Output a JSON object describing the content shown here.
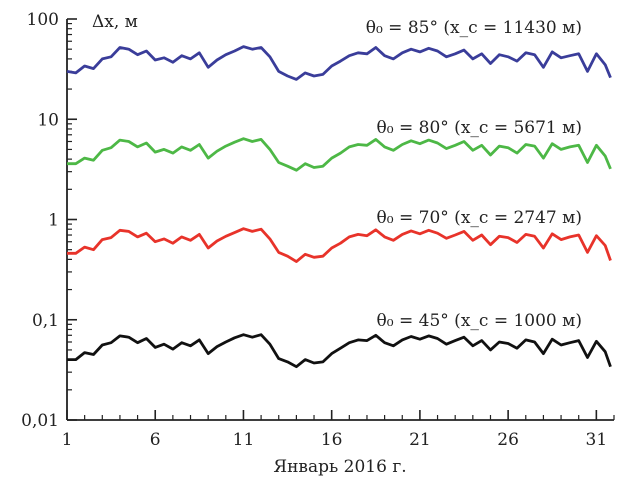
{
  "chart_data": {
    "type": "line",
    "ylabel": "Δx, м",
    "xlabel": "Январь 2016 г.",
    "yscale": "log",
    "ylim": [
      0.01,
      100
    ],
    "xlim": [
      1,
      32
    ],
    "grid": false,
    "x_ticks": [
      1,
      6,
      11,
      16,
      21,
      26,
      31
    ],
    "y_ticks": [
      {
        "value": 100,
        "label": "100"
      },
      {
        "value": 10,
        "label": "10"
      },
      {
        "value": 1,
        "label": "1"
      },
      {
        "value": 0.1,
        "label": "0,1"
      },
      {
        "value": 0.01,
        "label": "0,01"
      }
    ],
    "x": [
      1.0,
      1.5,
      2.0,
      2.5,
      3.0,
      3.5,
      4.0,
      4.5,
      5.0,
      5.5,
      6.0,
      6.5,
      7.0,
      7.5,
      8.0,
      8.5,
      9.0,
      9.5,
      10.0,
      10.5,
      11.0,
      11.5,
      12.0,
      12.5,
      13.0,
      13.5,
      14.0,
      14.5,
      15.0,
      15.5,
      16.0,
      16.5,
      17.0,
      17.5,
      18.0,
      18.5,
      19.0,
      19.5,
      20.0,
      20.5,
      21.0,
      21.5,
      22.0,
      22.5,
      23.0,
      23.5,
      24.0,
      24.5,
      25.0,
      25.5,
      26.0,
      26.5,
      27.0,
      27.5,
      28.0,
      28.5,
      29.0,
      29.5,
      30.0,
      30.5,
      31.0,
      31.5,
      31.8
    ],
    "series": [
      {
        "label": "θ₀ = 85° (x_c = 11430 м)",
        "color": "#3a3d9a",
        "values": [
          30,
          29,
          34,
          32,
          40,
          42,
          52,
          50,
          44,
          48,
          39,
          41,
          37,
          43,
          40,
          46,
          33,
          39,
          44,
          48,
          53,
          50,
          52,
          42,
          30,
          27,
          25,
          29,
          27,
          28,
          34,
          38,
          43,
          46,
          45,
          52,
          43,
          40,
          46,
          50,
          47,
          51,
          48,
          42,
          45,
          49,
          40,
          45,
          36,
          44,
          42,
          38,
          46,
          44,
          33,
          47,
          41,
          43,
          45,
          30,
          45,
          35,
          26
        ]
      },
      {
        "label": "θ₀ = 80° (x_c = 5671 м)",
        "color": "#4db846",
        "values": [
          3.6,
          3.6,
          4.1,
          3.9,
          4.9,
          5.2,
          6.2,
          6.0,
          5.3,
          5.8,
          4.7,
          5.0,
          4.6,
          5.3,
          4.9,
          5.6,
          4.1,
          4.8,
          5.4,
          5.9,
          6.4,
          6.0,
          6.3,
          5.0,
          3.7,
          3.4,
          3.1,
          3.6,
          3.3,
          3.4,
          4.1,
          4.6,
          5.3,
          5.6,
          5.5,
          6.3,
          5.3,
          4.9,
          5.6,
          6.1,
          5.7,
          6.2,
          5.8,
          5.1,
          5.5,
          6.0,
          4.9,
          5.5,
          4.4,
          5.4,
          5.2,
          4.6,
          5.6,
          5.4,
          4.1,
          5.7,
          5.0,
          5.3,
          5.5,
          3.7,
          5.5,
          4.3,
          3.2
        ]
      },
      {
        "label": "θ₀ = 70° (x_c = 2747 м)",
        "color": "#e8332a",
        "values": [
          0.46,
          0.46,
          0.53,
          0.5,
          0.63,
          0.66,
          0.78,
          0.76,
          0.67,
          0.73,
          0.6,
          0.64,
          0.58,
          0.67,
          0.62,
          0.71,
          0.52,
          0.61,
          0.68,
          0.74,
          0.81,
          0.76,
          0.8,
          0.64,
          0.47,
          0.43,
          0.38,
          0.45,
          0.42,
          0.43,
          0.52,
          0.58,
          0.67,
          0.71,
          0.69,
          0.79,
          0.67,
          0.62,
          0.71,
          0.77,
          0.72,
          0.78,
          0.73,
          0.65,
          0.7,
          0.76,
          0.62,
          0.7,
          0.56,
          0.68,
          0.66,
          0.59,
          0.71,
          0.68,
          0.52,
          0.72,
          0.63,
          0.67,
          0.7,
          0.47,
          0.69,
          0.55,
          0.39
        ]
      },
      {
        "label": "θ₀ = 45° (x_c = 1000 м)",
        "color": "#111111",
        "values": [
          0.04,
          0.04,
          0.047,
          0.045,
          0.056,
          0.059,
          0.069,
          0.067,
          0.059,
          0.065,
          0.053,
          0.057,
          0.051,
          0.059,
          0.055,
          0.063,
          0.046,
          0.054,
          0.06,
          0.066,
          0.071,
          0.067,
          0.071,
          0.057,
          0.041,
          0.038,
          0.034,
          0.04,
          0.037,
          0.038,
          0.046,
          0.052,
          0.059,
          0.063,
          0.062,
          0.07,
          0.059,
          0.055,
          0.063,
          0.068,
          0.064,
          0.069,
          0.065,
          0.057,
          0.062,
          0.067,
          0.055,
          0.062,
          0.05,
          0.06,
          0.058,
          0.052,
          0.063,
          0.06,
          0.046,
          0.064,
          0.056,
          0.059,
          0.062,
          0.042,
          0.061,
          0.048,
          0.034
        ]
      }
    ]
  }
}
